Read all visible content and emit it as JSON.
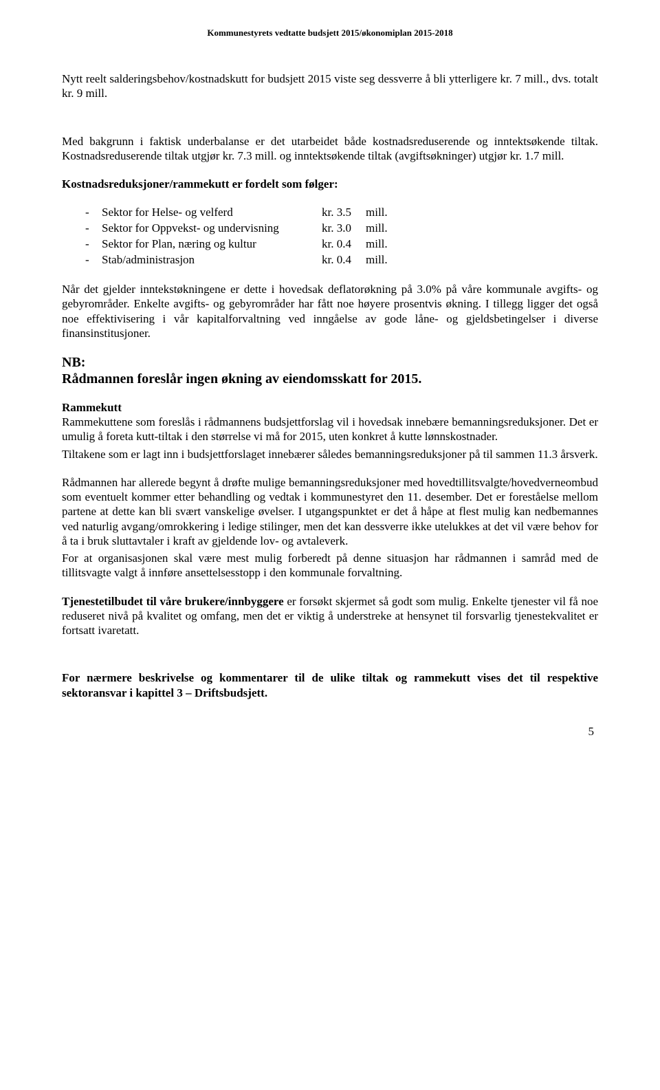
{
  "header": "Kommunestyrets vedtatte budsjett 2015/økonomiplan 2015-2018",
  "p1": "Nytt reelt salderingsbehov/kostnadskutt for budsjett 2015 viste seg dessverre å bli ytterligere kr. 7 mill., dvs. totalt kr. 9 mill.",
  "p2": "Med bakgrunn i faktisk underbalanse er det utarbeidet både kostnadsreduserende og inntektsøkende tiltak. Kostnadsreduserende tiltak utgjør kr. 7.3 mill. og inntektsøkende tiltak (avgiftsøkninger) utgjør kr. 1.7 mill.",
  "p3": "Kostnadsreduksjoner/rammekutt er fordelt som følger:",
  "list": {
    "items": [
      {
        "label": "Sektor for Helse- og velferd",
        "kr": "kr. 3.5",
        "mill": "mill."
      },
      {
        "label": "Sektor for Oppvekst- og undervisning",
        "kr": "kr. 3.0",
        "mill": "mill."
      },
      {
        "label": "Sektor for Plan, næring og kultur",
        "kr": "kr. 0.4",
        "mill": "mill."
      },
      {
        "label": "Stab/administrasjon",
        "kr": "kr. 0.4",
        "mill": "mill."
      }
    ]
  },
  "p4": "Når det gjelder inntekstøkningene er dette i hovedsak deflatorøkning på 3.0% på våre kommunale avgifts- og gebyrområder. Enkelte avgifts- og gebyrområder har fått noe høyere prosentvis økning.  I tillegg ligger det også noe effektivisering i vår kapitalforvaltning ved inngåelse av gode låne- og gjeldsbetingelser i diverse finansinstitusjoner.",
  "nb": {
    "line1": "NB:",
    "line2": "Rådmannen foreslår ingen økning av eiendomsskatt for 2015."
  },
  "rammekutt": {
    "title": "Rammekutt",
    "p1": "Rammekuttene som foreslås i rådmannens budsjettforslag vil i hovedsak innebære bemanningsreduksjoner. Det er umulig å foreta kutt-tiltak i den størrelse vi må for 2015, uten konkret å kutte lønnskostnader.",
    "p2": "Tiltakene som er lagt inn i budsjettforslaget innebærer således bemanningsreduksjoner på til sammen 11.3 årsverk."
  },
  "p5": "Rådmannen har allerede begynt å drøfte mulige bemanningsreduksjoner med hovedtillitsvalgte/hovedverneombud som eventuelt kommer etter behandling og vedtak i kommunestyret den 11. desember.  Det er foreståelse mellom partene at dette kan bli svært vanskelige øvelser.  I utgangspunktet er det å håpe at flest mulig kan nedbemannes ved naturlig avgang/omrokkering i ledige stilinger, men det kan dessverre ikke utelukkes at det vil være behov for å ta i bruk sluttavtaler i kraft av gjeldende lov- og avtaleverk.",
  "p6": "For at organisasjonen skal være mest mulig forberedt på denne situasjon har rådmannen i samråd med de tillitsvagte valgt å innføre ansettelsesstopp i den kommunale forvaltning.",
  "p7a": "Tjenestetilbudet til våre brukere/innbyggere",
  "p7b": " er forsøkt skjermet så godt som mulig. Enkelte tjenester vil få noe reduseret nivå på kvalitet og omfang, men det er viktig å understreke at hensynet til forsvarlig tjenestekvalitet er fortsatt ivaretatt.",
  "p8": "For nærmere beskrivelse og kommentarer til de ulike tiltak og rammekutt vises det til respektive  sektoransvar  i kapittel 3 – Driftsbudsjett.",
  "page_number": "5"
}
